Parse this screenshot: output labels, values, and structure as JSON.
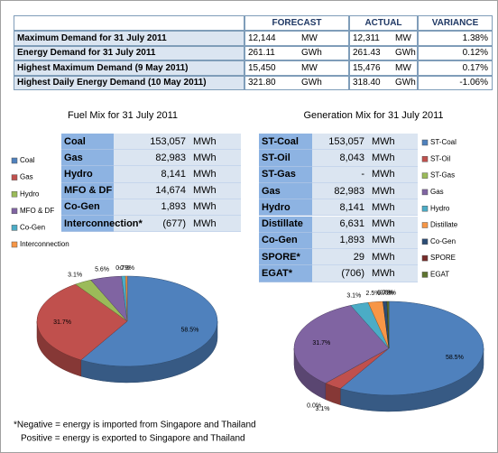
{
  "summary_table": {
    "header": [
      "FORECAST",
      "ACTUAL",
      "VARIANCE"
    ],
    "rows": [
      [
        "Maximum Demand for 31 July 2011",
        "12,144",
        "MW",
        "12,311",
        "MW",
        "1.38%"
      ],
      [
        "Energy Demand for 31 July 2011",
        "261.11",
        "GWh",
        "261.43",
        "GWh",
        "0.12%"
      ],
      [
        "Highest Maximum Demand (9 May 2011)",
        "15,450",
        "MW",
        "15,476",
        "MW",
        "0.17%"
      ],
      [
        "Highest Daily Energy Demand (10 May 2011)",
        "321.80",
        "GWh",
        "318.40",
        "GWh",
        "-1.06%"
      ]
    ]
  },
  "fuel_mix_table": {
    "rows": [
      [
        "Coal",
        "153,057",
        "MWh"
      ],
      [
        "Gas",
        "82,983",
        "MWh"
      ],
      [
        "Hydro",
        "8,141",
        "MWh"
      ],
      [
        "MFO & DF",
        "14,674",
        "MWh"
      ],
      [
        "Co-Gen",
        "1,893",
        "MWh"
      ],
      [
        "Interconnection*",
        "(677)",
        "MWh"
      ]
    ]
  },
  "generation_mix_table": {
    "rows": [
      [
        "ST-Coal",
        "153,057",
        "MWh"
      ],
      [
        "ST-Oil",
        "8,043",
        "MWh"
      ],
      [
        "ST-Gas",
        "-",
        "MWh"
      ],
      [
        "Gas",
        "82,983",
        "MWh"
      ],
      [
        "Hydro",
        "8,141",
        "MWh"
      ],
      [
        "Distillate",
        "6,631",
        "MWh"
      ],
      [
        "Co-Gen",
        "1,893",
        "MWh"
      ],
      [
        "SPORE*",
        "29",
        "MWh"
      ],
      [
        "EGAT*",
        "(706)",
        "MWh"
      ]
    ]
  },
  "chart_data": [
    {
      "type": "pie",
      "title": "Fuel Mix for 31 July 2011",
      "categories": [
        "Coal",
        "Gas",
        "Hydro",
        "MFO & DF",
        "Co-Gen",
        "Interconnection"
      ],
      "values": [
        58.5,
        31.7,
        3.1,
        5.6,
        0.7,
        -0.3
      ],
      "value_labels": [
        "58.5%",
        "31.7%",
        "3.1%",
        "5.6%",
        "0.7%",
        "-0.3%"
      ],
      "colors": [
        "#4f81bd",
        "#c0504d",
        "#9bbb59",
        "#8064a2",
        "#4bacc6",
        "#f79646"
      ]
    },
    {
      "type": "pie",
      "title": "Generation Mix for 31 July 2011",
      "categories": [
        "ST-Coal",
        "ST-Oil",
        "ST-Gas",
        "Gas",
        "Hydro",
        "Distillate",
        "Co-Gen",
        "SPORE",
        "EGAT"
      ],
      "values": [
        58.5,
        3.1,
        0.0,
        31.7,
        3.1,
        2.5,
        0.7,
        0.0,
        -0.3
      ],
      "value_labels": [
        "58.5%",
        "3.1%",
        "0.0%",
        "31.7%",
        "3.1%",
        "2.5%",
        "0.7%",
        "0.0%",
        "-0.3%"
      ],
      "colors": [
        "#4f81bd",
        "#c0504d",
        "#9bbb59",
        "#8064a2",
        "#4bacc6",
        "#f79646",
        "#2c4d75",
        "#772c2a",
        "#5f7530"
      ]
    }
  ],
  "footnote": [
    "*Negative = energy is imported from Singapore and Thailand",
    "Positive = energy is exported to Singapore and Thailand"
  ]
}
